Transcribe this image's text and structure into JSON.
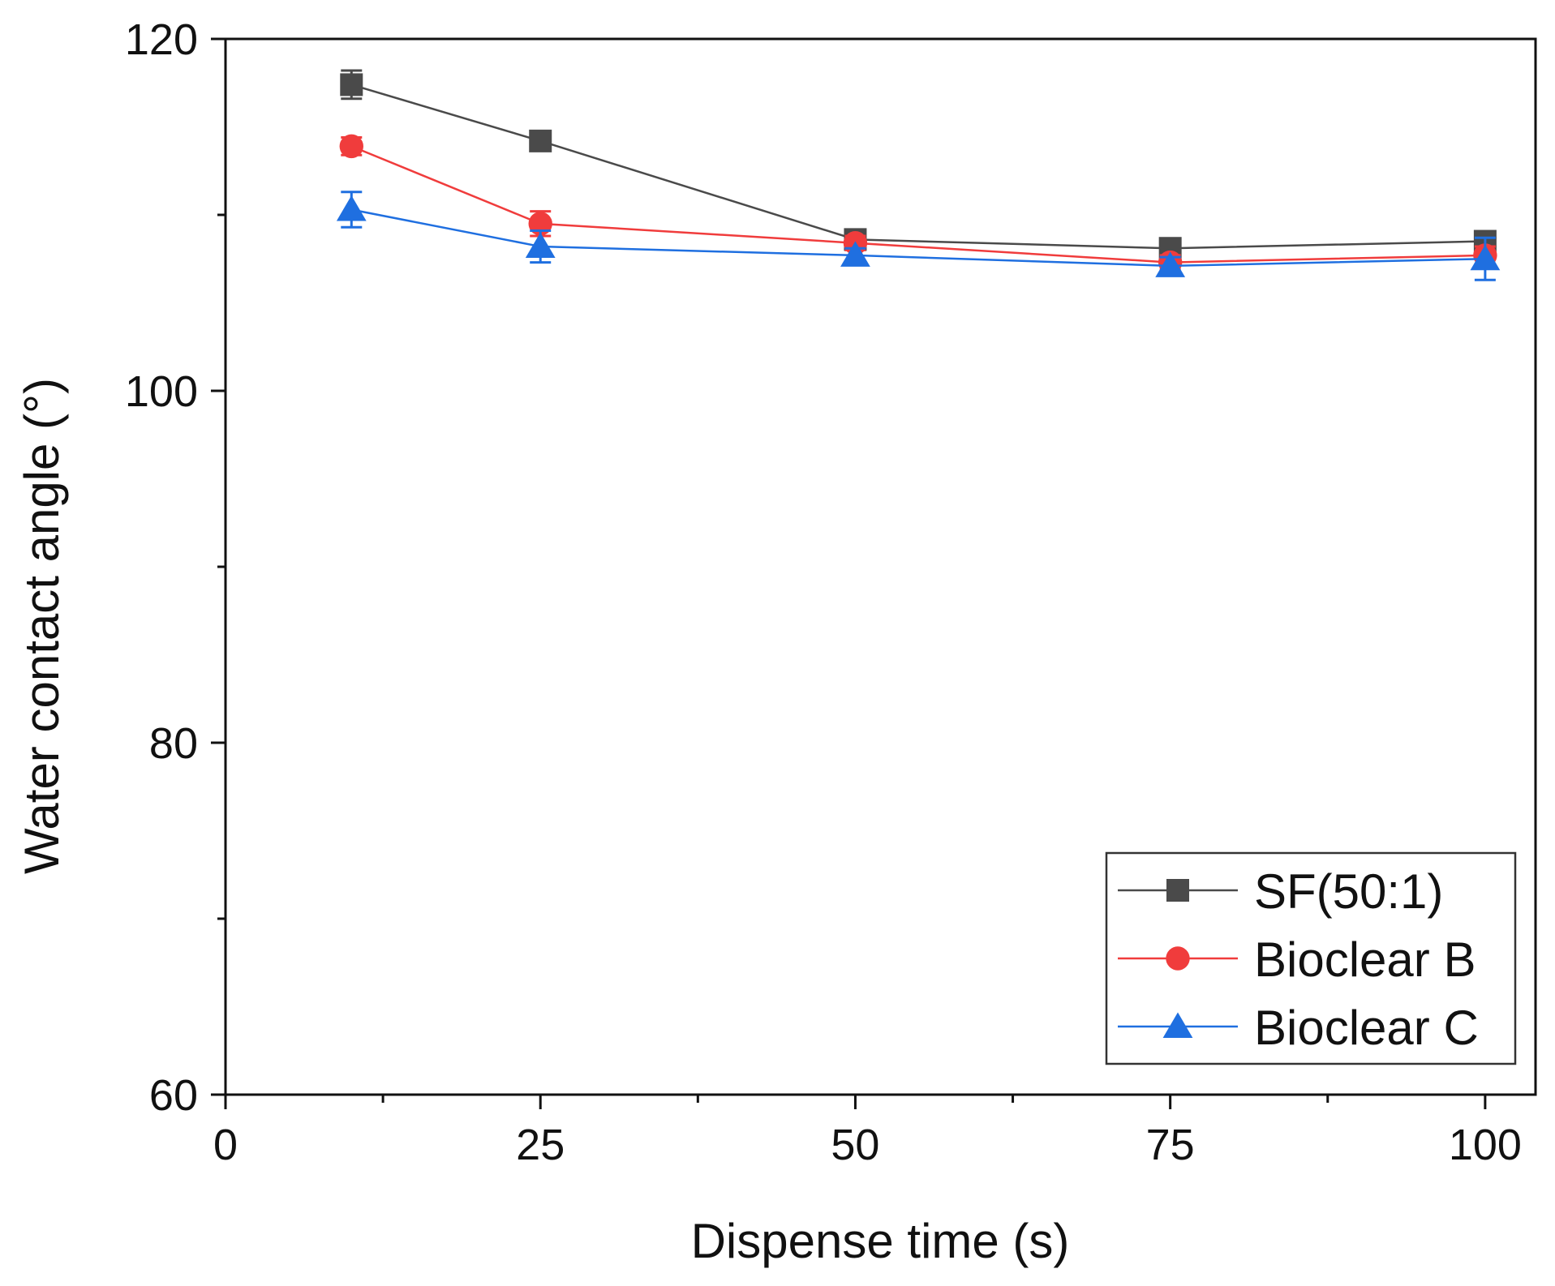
{
  "chart_data": {
    "type": "line",
    "title": "",
    "xlabel": "Dispense time (s)",
    "ylabel": "Water contact angle (°)",
    "xlim": [
      0,
      104
    ],
    "ylim": [
      60,
      120
    ],
    "x_major_ticks": [
      0,
      25,
      50,
      75,
      100
    ],
    "x_minor_ticks": [
      12.5,
      37.5,
      62.5,
      87.5
    ],
    "y_major_ticks": [
      60,
      80,
      100,
      120
    ],
    "y_minor_ticks": [
      70,
      90,
      110
    ],
    "x_tick_labels": [
      "0",
      "25",
      "50",
      "75",
      "100"
    ],
    "y_tick_labels": [
      "60",
      "80",
      "100",
      "120"
    ],
    "legend_position": "bottom-right",
    "series": [
      {
        "name": "SF(50:1)",
        "color": "#4a4a4a",
        "marker": "square",
        "x": [
          10,
          25,
          50,
          75,
          100
        ],
        "y": [
          117.4,
          114.2,
          108.6,
          108.1,
          108.5
        ],
        "err": [
          0.8,
          0.4,
          0.3,
          0.4,
          0.5
        ]
      },
      {
        "name": "Bioclear B",
        "color": "#f03c3c",
        "marker": "circle",
        "x": [
          10,
          25,
          50,
          75,
          100
        ],
        "y": [
          113.9,
          109.5,
          108.4,
          107.3,
          107.7
        ],
        "err": [
          0.5,
          0.7,
          0.4,
          0.4,
          0.5
        ]
      },
      {
        "name": "Bioclear C",
        "color": "#1f6fe0",
        "marker": "triangle",
        "x": [
          10,
          25,
          50,
          75,
          100
        ],
        "y": [
          110.3,
          108.2,
          107.7,
          107.1,
          107.5
        ],
        "err": [
          1.0,
          0.9,
          0.4,
          0.5,
          1.2
        ]
      }
    ]
  }
}
